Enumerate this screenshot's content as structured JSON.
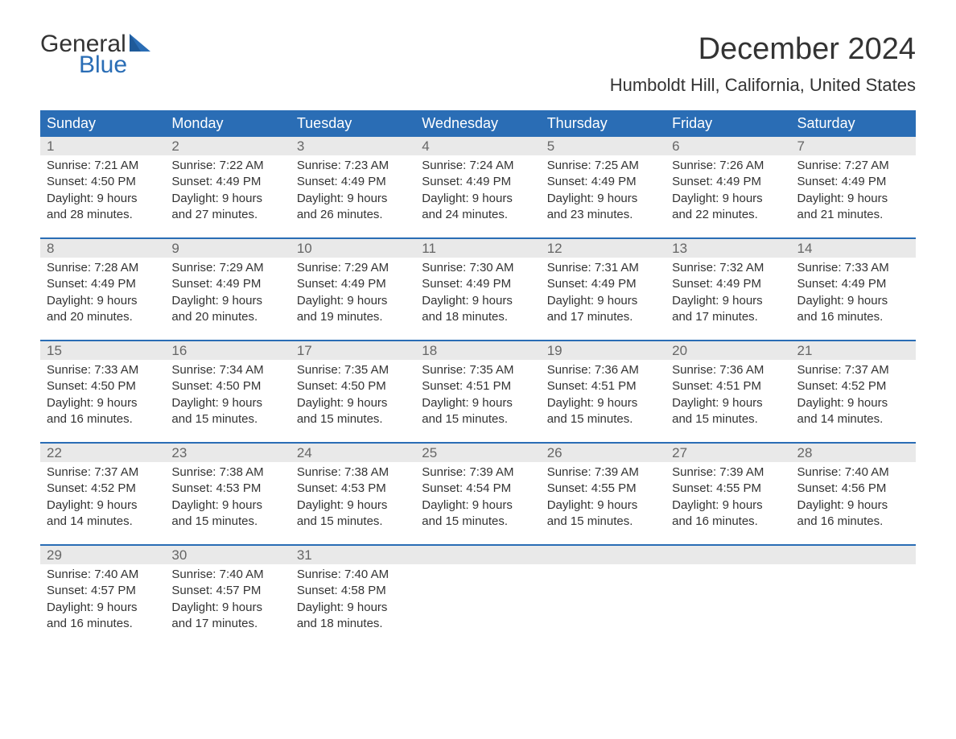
{
  "brand": {
    "word1": "General",
    "word2": "Blue",
    "color_dark": "#333333",
    "color_blue": "#2a6db5"
  },
  "title": "December 2024",
  "location": "Humboldt Hill, California, United States",
  "colors": {
    "header_bg": "#2a6db5",
    "header_text": "#ffffff",
    "daynum_bg": "#e9e9e9",
    "daynum_text": "#666666",
    "body_text": "#333333",
    "week_border": "#2a6db5",
    "page_bg": "#ffffff"
  },
  "calendar": {
    "type": "table",
    "columns": [
      "Sunday",
      "Monday",
      "Tuesday",
      "Wednesday",
      "Thursday",
      "Friday",
      "Saturday"
    ],
    "weeks": [
      [
        {
          "n": "1",
          "sunrise": "7:21 AM",
          "sunset": "4:50 PM",
          "dl1": "9 hours",
          "dl2": "and 28 minutes."
        },
        {
          "n": "2",
          "sunrise": "7:22 AM",
          "sunset": "4:49 PM",
          "dl1": "9 hours",
          "dl2": "and 27 minutes."
        },
        {
          "n": "3",
          "sunrise": "7:23 AM",
          "sunset": "4:49 PM",
          "dl1": "9 hours",
          "dl2": "and 26 minutes."
        },
        {
          "n": "4",
          "sunrise": "7:24 AM",
          "sunset": "4:49 PM",
          "dl1": "9 hours",
          "dl2": "and 24 minutes."
        },
        {
          "n": "5",
          "sunrise": "7:25 AM",
          "sunset": "4:49 PM",
          "dl1": "9 hours",
          "dl2": "and 23 minutes."
        },
        {
          "n": "6",
          "sunrise": "7:26 AM",
          "sunset": "4:49 PM",
          "dl1": "9 hours",
          "dl2": "and 22 minutes."
        },
        {
          "n": "7",
          "sunrise": "7:27 AM",
          "sunset": "4:49 PM",
          "dl1": "9 hours",
          "dl2": "and 21 minutes."
        }
      ],
      [
        {
          "n": "8",
          "sunrise": "7:28 AM",
          "sunset": "4:49 PM",
          "dl1": "9 hours",
          "dl2": "and 20 minutes."
        },
        {
          "n": "9",
          "sunrise": "7:29 AM",
          "sunset": "4:49 PM",
          "dl1": "9 hours",
          "dl2": "and 20 minutes."
        },
        {
          "n": "10",
          "sunrise": "7:29 AM",
          "sunset": "4:49 PM",
          "dl1": "9 hours",
          "dl2": "and 19 minutes."
        },
        {
          "n": "11",
          "sunrise": "7:30 AM",
          "sunset": "4:49 PM",
          "dl1": "9 hours",
          "dl2": "and 18 minutes."
        },
        {
          "n": "12",
          "sunrise": "7:31 AM",
          "sunset": "4:49 PM",
          "dl1": "9 hours",
          "dl2": "and 17 minutes."
        },
        {
          "n": "13",
          "sunrise": "7:32 AM",
          "sunset": "4:49 PM",
          "dl1": "9 hours",
          "dl2": "and 17 minutes."
        },
        {
          "n": "14",
          "sunrise": "7:33 AM",
          "sunset": "4:49 PM",
          "dl1": "9 hours",
          "dl2": "and 16 minutes."
        }
      ],
      [
        {
          "n": "15",
          "sunrise": "7:33 AM",
          "sunset": "4:50 PM",
          "dl1": "9 hours",
          "dl2": "and 16 minutes."
        },
        {
          "n": "16",
          "sunrise": "7:34 AM",
          "sunset": "4:50 PM",
          "dl1": "9 hours",
          "dl2": "and 15 minutes."
        },
        {
          "n": "17",
          "sunrise": "7:35 AM",
          "sunset": "4:50 PM",
          "dl1": "9 hours",
          "dl2": "and 15 minutes."
        },
        {
          "n": "18",
          "sunrise": "7:35 AM",
          "sunset": "4:51 PM",
          "dl1": "9 hours",
          "dl2": "and 15 minutes."
        },
        {
          "n": "19",
          "sunrise": "7:36 AM",
          "sunset": "4:51 PM",
          "dl1": "9 hours",
          "dl2": "and 15 minutes."
        },
        {
          "n": "20",
          "sunrise": "7:36 AM",
          "sunset": "4:51 PM",
          "dl1": "9 hours",
          "dl2": "and 15 minutes."
        },
        {
          "n": "21",
          "sunrise": "7:37 AM",
          "sunset": "4:52 PM",
          "dl1": "9 hours",
          "dl2": "and 14 minutes."
        }
      ],
      [
        {
          "n": "22",
          "sunrise": "7:37 AM",
          "sunset": "4:52 PM",
          "dl1": "9 hours",
          "dl2": "and 14 minutes."
        },
        {
          "n": "23",
          "sunrise": "7:38 AM",
          "sunset": "4:53 PM",
          "dl1": "9 hours",
          "dl2": "and 15 minutes."
        },
        {
          "n": "24",
          "sunrise": "7:38 AM",
          "sunset": "4:53 PM",
          "dl1": "9 hours",
          "dl2": "and 15 minutes."
        },
        {
          "n": "25",
          "sunrise": "7:39 AM",
          "sunset": "4:54 PM",
          "dl1": "9 hours",
          "dl2": "and 15 minutes."
        },
        {
          "n": "26",
          "sunrise": "7:39 AM",
          "sunset": "4:55 PM",
          "dl1": "9 hours",
          "dl2": "and 15 minutes."
        },
        {
          "n": "27",
          "sunrise": "7:39 AM",
          "sunset": "4:55 PM",
          "dl1": "9 hours",
          "dl2": "and 16 minutes."
        },
        {
          "n": "28",
          "sunrise": "7:40 AM",
          "sunset": "4:56 PM",
          "dl1": "9 hours",
          "dl2": "and 16 minutes."
        }
      ],
      [
        {
          "n": "29",
          "sunrise": "7:40 AM",
          "sunset": "4:57 PM",
          "dl1": "9 hours",
          "dl2": "and 16 minutes."
        },
        {
          "n": "30",
          "sunrise": "7:40 AM",
          "sunset": "4:57 PM",
          "dl1": "9 hours",
          "dl2": "and 17 minutes."
        },
        {
          "n": "31",
          "sunrise": "7:40 AM",
          "sunset": "4:58 PM",
          "dl1": "9 hours",
          "dl2": "and 18 minutes."
        },
        null,
        null,
        null,
        null
      ]
    ],
    "labels": {
      "sunrise": "Sunrise: ",
      "sunset": "Sunset: ",
      "daylight": "Daylight: "
    }
  }
}
